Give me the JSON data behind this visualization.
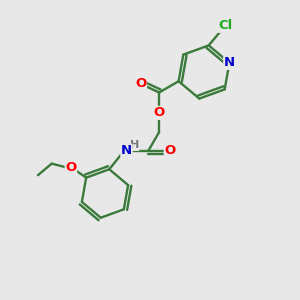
{
  "background_color": "#e8e8e8",
  "bond_color": "#3a7a3a",
  "atom_colors": {
    "O": "#ff0000",
    "N": "#0000cc",
    "Cl": "#22aa22",
    "H": "#777777",
    "C": "#3a7a3a"
  },
  "figsize": [
    3.0,
    3.0
  ],
  "dpi": 100
}
